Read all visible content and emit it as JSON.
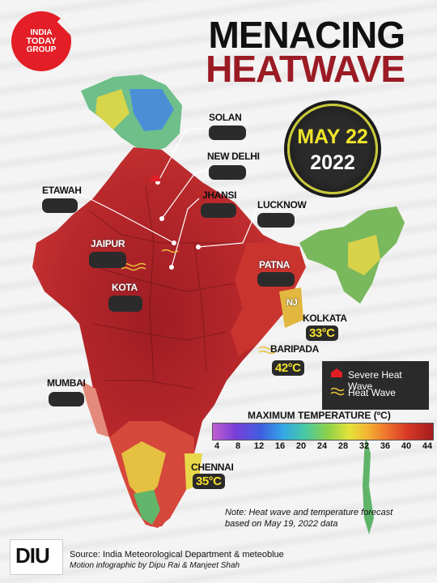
{
  "logo": {
    "line1": "INDIA",
    "line2": "TODAY",
    "line3": "GROUP"
  },
  "title": {
    "line1": "MENACING",
    "line2": "HEATWAVE"
  },
  "date": {
    "day": "MAY 22",
    "year": "2022"
  },
  "cities": {
    "solan": "SOLAN",
    "new_delhi": "NEW DELHI",
    "etawah": "ETAWAH",
    "jhansi": "JHANSI",
    "lucknow": "LUCKNOW",
    "jaipur": "JAIPUR",
    "kota": "KOTA",
    "patna": "PATNA",
    "kolkata": "KOLKATA",
    "baripada": "BARIPADA",
    "mumbai": "MUMBAI",
    "chennai": "CHENNAI",
    "nj": "NJ"
  },
  "temps": {
    "kolkata": "33°C",
    "baripada": "42°C",
    "chennai": "35°C"
  },
  "legend": {
    "severe": "Severe Heat Wave",
    "heat": "Heat Wave",
    "colors": {
      "severe": "#e21f26",
      "heat": "#e8c23a"
    }
  },
  "scale": {
    "title": "MAXIMUM TEMPERATURE (ºC)",
    "ticks": [
      "4",
      "8",
      "12",
      "16",
      "20",
      "24",
      "28",
      "32",
      "36",
      "40",
      "44"
    ]
  },
  "note": {
    "line1": "Note: Heat wave and temperature forecast",
    "line2": "based on May 19, 2022 data"
  },
  "footer": {
    "logo": "DIU",
    "source": "Source: India Meteorological Department & meteoblue",
    "credit": "Motion infographic by Dipu Rai & Manjeet Shah"
  },
  "icons": [
    "severe-heatwave-icon",
    "heatwave-wave-icon"
  ]
}
